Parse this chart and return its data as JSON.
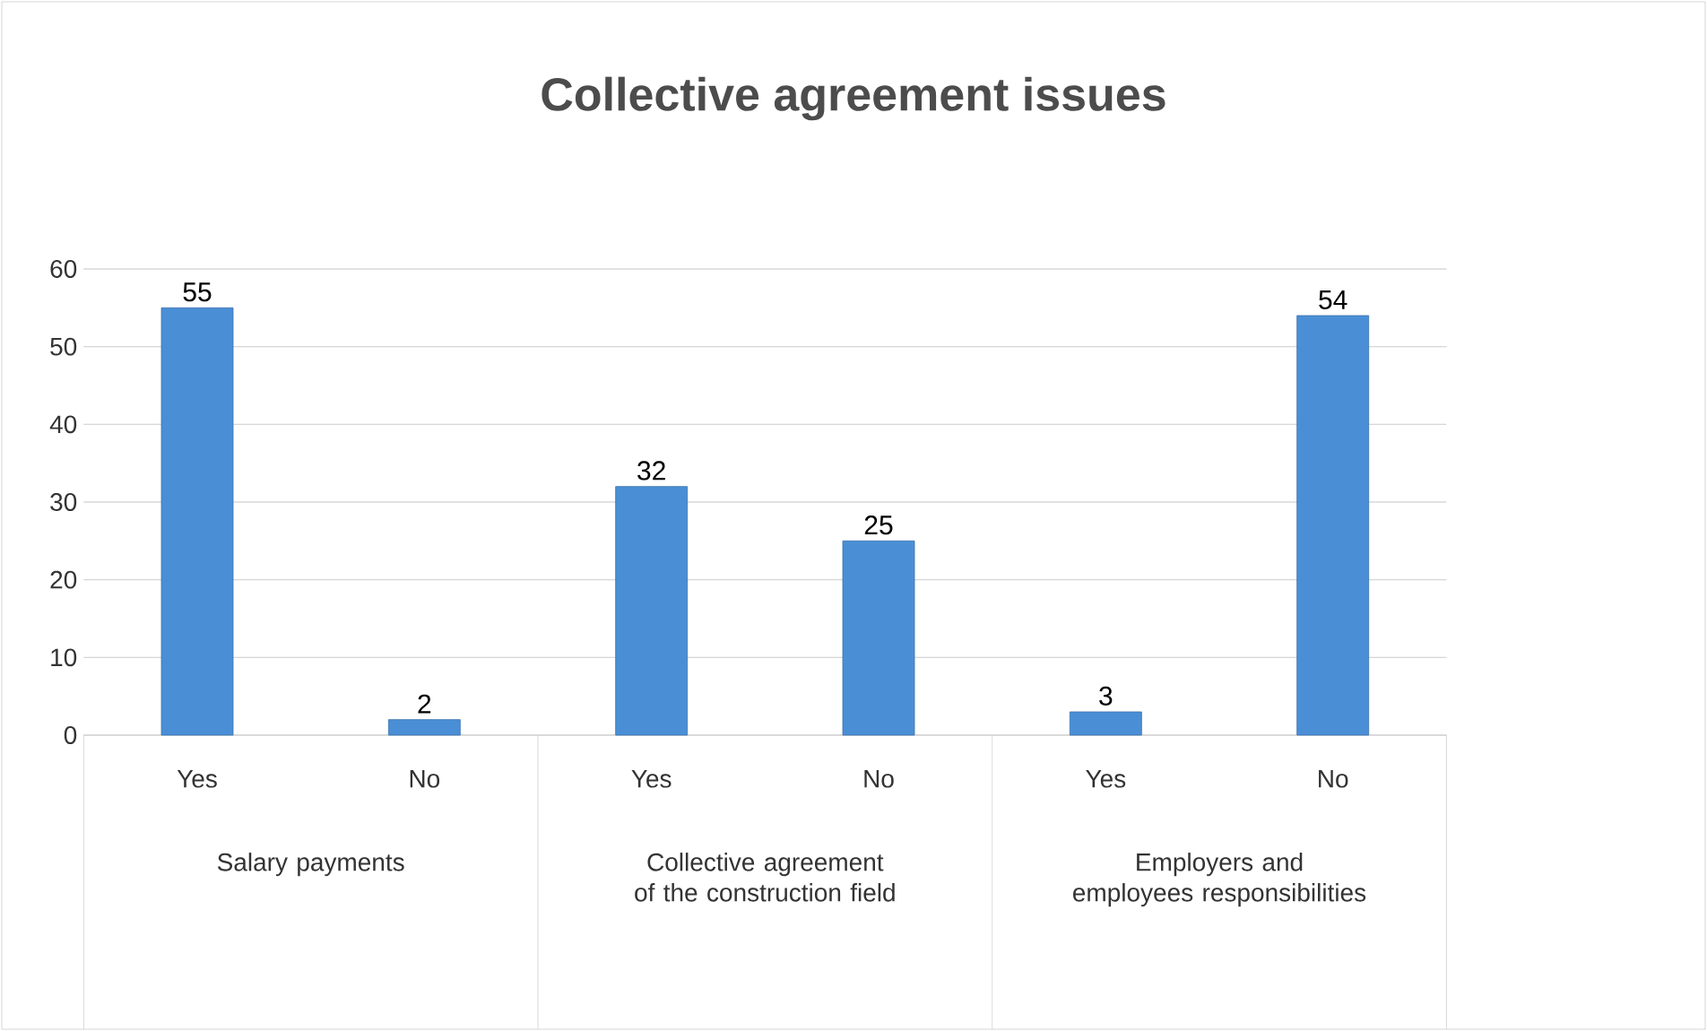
{
  "chart_data": {
    "type": "bar",
    "title": "Collective agreement issues",
    "categories": [
      "Yes",
      "No",
      "Yes",
      "No",
      "Yes",
      "No"
    ],
    "values": [
      55,
      2,
      32,
      25,
      3,
      54
    ],
    "color": "#4a8fd6",
    "ylim": [
      0,
      60
    ],
    "yticks": [
      0,
      10,
      20,
      30,
      40,
      50,
      60
    ],
    "grid": "y",
    "data_labels": true,
    "annotations": [
      "Salary payments",
      "Collective agreement of the construction field",
      "Employers and employees responsibilities"
    ]
  }
}
